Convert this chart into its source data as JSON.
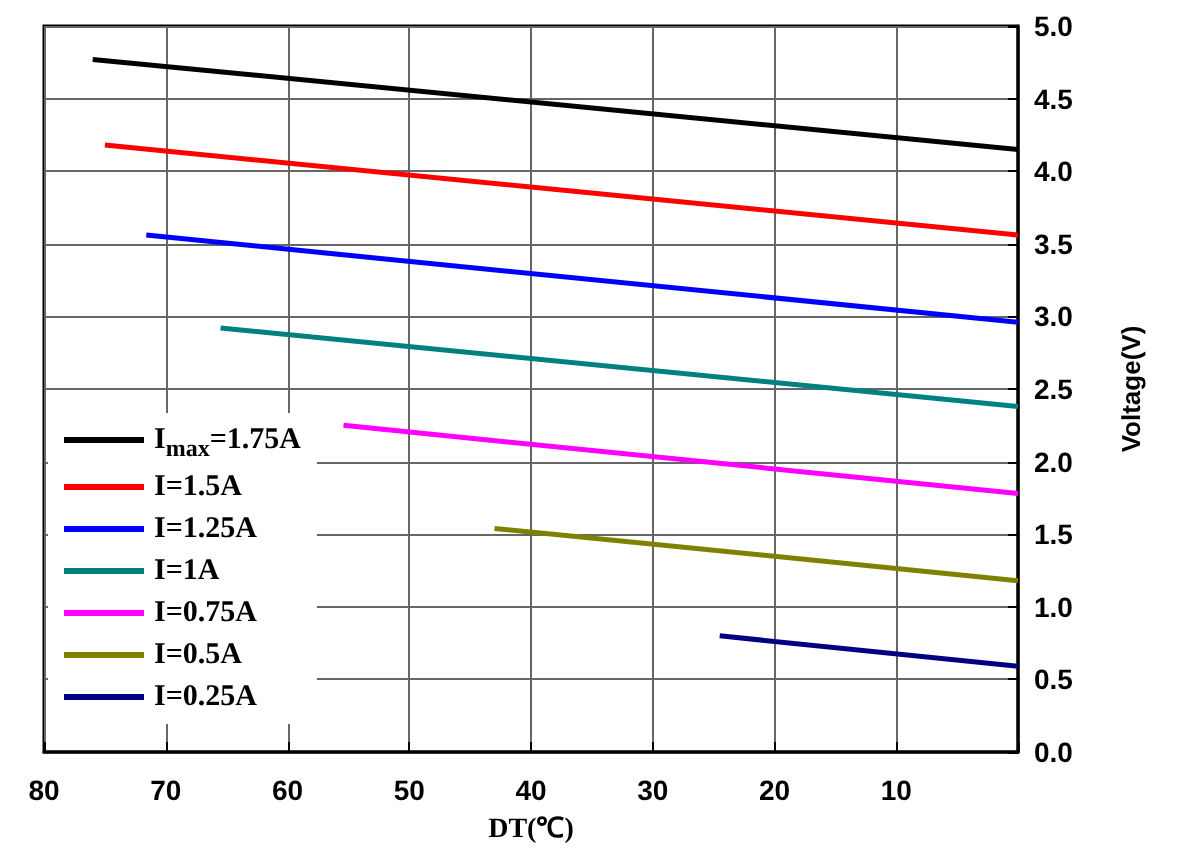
{
  "chart_data": {
    "type": "line",
    "xlabel": "DT(℃)",
    "ylabel": "Voltage(V)",
    "xlim": [
      80,
      0
    ],
    "xticks": [
      80,
      70,
      60,
      50,
      40,
      30,
      20,
      10,
      {
        "value": 0,
        "label": null
      }
    ],
    "ylim": [
      0,
      5
    ],
    "yticks": [
      {
        "value": 0,
        "label": "0.0"
      },
      0.5,
      {
        "value": 1,
        "label": "1.0"
      },
      1.5,
      {
        "value": 2,
        "label": "2.0"
      },
      2.5,
      {
        "value": 3,
        "label": "3.0"
      },
      3.5,
      {
        "value": 4,
        "label": "4.0"
      },
      4.5,
      {
        "value": 5,
        "label": "5.0"
      }
    ],
    "grid": true,
    "legend": "bottom left",
    "marker": "none",
    "line_style": "solid",
    "series": [
      {
        "name": "I$_{max}$=1.75A",
        "color": "#000000",
        "x": [
          76,
          0
        ],
        "values": [
          4.77,
          4.15
        ]
      },
      {
        "name": "I=1.5A",
        "color": "#ff0000",
        "x": [
          75,
          0
        ],
        "values": [
          4.18,
          3.56
        ]
      },
      {
        "name": "I=1.25A",
        "color": "#0000ff",
        "x": [
          71.6,
          0
        ],
        "values": [
          3.56,
          2.96
        ]
      },
      {
        "name": "I=1A",
        "color": "#008080",
        "x": [
          65.5,
          0
        ],
        "values": [
          2.92,
          2.38
        ]
      },
      {
        "name": "I=0.75A",
        "color": "#ff00ff",
        "x": [
          55.4,
          0
        ],
        "values": [
          2.25,
          1.78
        ]
      },
      {
        "name": "I=0.5A",
        "color": "#808000",
        "x": [
          43,
          0
        ],
        "values": [
          1.54,
          1.18
        ]
      },
      {
        "name": "I=0.25A",
        "color": "#000080",
        "x": [
          24.5,
          0
        ],
        "values": [
          0.8,
          0.59
        ]
      }
    ]
  }
}
